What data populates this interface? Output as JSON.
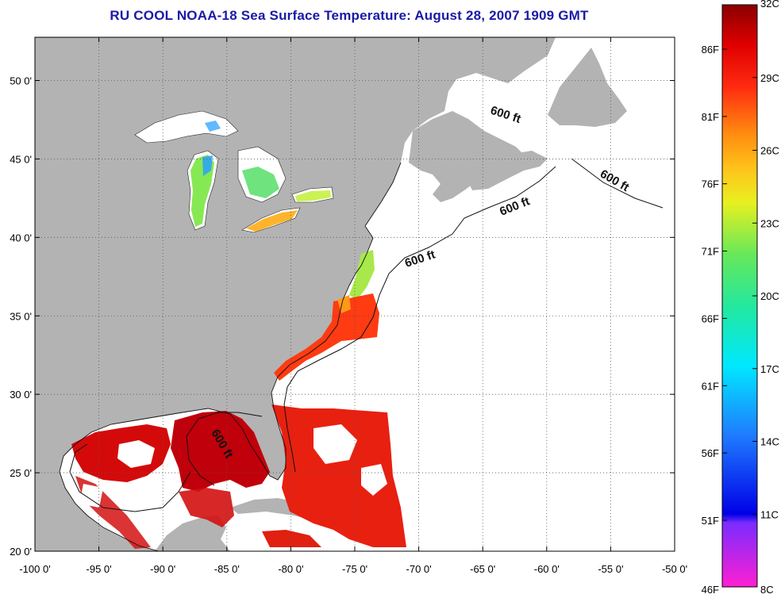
{
  "title": "RU COOL  NOAA-18  Sea Surface Temperature:  August 28, 2007 1909 GMT",
  "map": {
    "lon_labels": [
      "-100 0'",
      "-95 0'",
      "-90 0'",
      "-85 0'",
      "-80 0'",
      "-75 0'",
      "-70 0'",
      "-65 0'",
      "-60 0'",
      "-55 0'",
      "-50 0'"
    ],
    "lat_labels": [
      "50 0'",
      "45 0'",
      "40 0'",
      "35 0'",
      "30 0'",
      "25 0'",
      "20 0'"
    ],
    "contour_label": "600 ft",
    "land_color": "#b3b3b3"
  },
  "colorbar": {
    "celsius_labels": [
      "32C",
      "29C",
      "26C",
      "23C",
      "20C",
      "17C",
      "14C",
      "11C",
      "8C"
    ],
    "fahrenheit_labels": [
      "86F",
      "81F",
      "76F",
      "71F",
      "66F",
      "61F",
      "56F",
      "51F",
      "46F"
    ]
  }
}
